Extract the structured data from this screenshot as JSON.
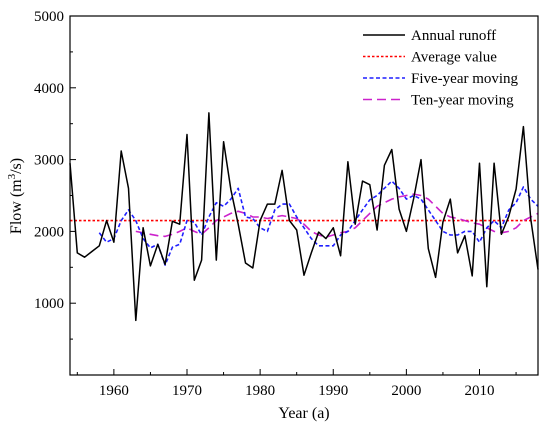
{
  "chart_data": {
    "type": "line",
    "xlabel": "Year (a)",
    "ylabel_main": "Flow (m",
    "ylabel_sup": "3",
    "ylabel_tail": "/s)",
    "xlim": [
      1954,
      2018
    ],
    "ylim": [
      0,
      5000
    ],
    "x_ticks": [
      1960,
      1970,
      1980,
      1990,
      2000,
      2010
    ],
    "y_ticks": [
      1000,
      2000,
      3000,
      4000,
      5000
    ],
    "legend_position": "top-right",
    "average_value": 2150,
    "series": [
      {
        "name": "Annual runoff",
        "color": "#000000",
        "style": "solid",
        "x": [
          1954,
          1955,
          1956,
          1957,
          1958,
          1959,
          1960,
          1961,
          1962,
          1963,
          1964,
          1965,
          1966,
          1967,
          1968,
          1969,
          1970,
          1971,
          1972,
          1973,
          1974,
          1975,
          1976,
          1977,
          1978,
          1979,
          1980,
          1981,
          1982,
          1983,
          1984,
          1985,
          1986,
          1987,
          1988,
          1989,
          1990,
          1991,
          1992,
          1993,
          1994,
          1995,
          1996,
          1997,
          1998,
          1999,
          2000,
          2001,
          2002,
          2003,
          2004,
          2005,
          2006,
          2007,
          2008,
          2009,
          2010,
          2011,
          2012,
          2013,
          2014,
          2015,
          2016,
          2017,
          2018
        ],
        "values": [
          2950,
          1700,
          1640,
          1720,
          1800,
          2150,
          1850,
          3120,
          2600,
          760,
          2050,
          1520,
          1820,
          1540,
          2140,
          2100,
          3350,
          1320,
          1600,
          3650,
          1600,
          3250,
          2580,
          2100,
          1560,
          1490,
          2150,
          2380,
          2380,
          2850,
          2150,
          2020,
          1390,
          1700,
          1990,
          1900,
          2050,
          1660,
          2970,
          2100,
          2700,
          2650,
          2020,
          2920,
          3140,
          2310,
          2000,
          2460,
          3000,
          1760,
          1360,
          2130,
          2450,
          1700,
          1940,
          1380,
          2950,
          1230,
          2950,
          1960,
          2210,
          2590,
          3460,
          2180,
          1470
        ]
      },
      {
        "name": "Average value",
        "color": "#ff0000",
        "style": "dotted",
        "x": [
          1954,
          2018
        ],
        "values": [
          2150,
          2150
        ]
      },
      {
        "name": "Five-year moving",
        "color": "#1f1fff",
        "style": "dashed-short",
        "x": [
          1958,
          1959,
          1960,
          1961,
          1962,
          1963,
          1964,
          1965,
          1966,
          1967,
          1968,
          1969,
          1970,
          1971,
          1972,
          1973,
          1974,
          1975,
          1976,
          1977,
          1978,
          1979,
          1980,
          1981,
          1982,
          1983,
          1984,
          1985,
          1986,
          1987,
          1988,
          1989,
          1990,
          1991,
          1992,
          1993,
          1994,
          1995,
          1996,
          1997,
          1998,
          1999,
          2000,
          2001,
          2002,
          2003,
          2004,
          2005,
          2006,
          2007,
          2008,
          2009,
          2010,
          2011,
          2012,
          2013,
          2014,
          2015,
          2016,
          2017,
          2018
        ],
        "values": [
          1980,
          1850,
          1900,
          2150,
          2300,
          2150,
          1900,
          1770,
          1820,
          1530,
          1780,
          1820,
          2150,
          2130,
          1950,
          2200,
          2400,
          2350,
          2450,
          2600,
          2200,
          2180,
          2050,
          2000,
          2300,
          2380,
          2380,
          2200,
          2050,
          1900,
          1800,
          1800,
          1800,
          1950,
          2000,
          2150,
          2300,
          2440,
          2500,
          2600,
          2700,
          2600,
          2450,
          2500,
          2450,
          2300,
          2150,
          2000,
          1950,
          1950,
          2000,
          2000,
          1850,
          2050,
          2150,
          2050,
          2300,
          2400,
          2620,
          2450,
          2350
        ]
      },
      {
        "name": "Ten-year moving",
        "color": "#cc22cc",
        "style": "dashed-long",
        "x": [
          1963,
          1964,
          1965,
          1966,
          1967,
          1968,
          1969,
          1970,
          1971,
          1972,
          1973,
          1974,
          1975,
          1976,
          1977,
          1978,
          1979,
          1980,
          1981,
          1982,
          1983,
          1984,
          1985,
          1986,
          1987,
          1988,
          1989,
          1990,
          1991,
          1992,
          1993,
          1994,
          1995,
          1996,
          1997,
          1998,
          1999,
          2000,
          2001,
          2002,
          2003,
          2004,
          2005,
          2006,
          2007,
          2008,
          2009,
          2010,
          2011,
          2012,
          2013,
          2014,
          2015,
          2016,
          2017,
          2018
        ],
        "values": [
          2000,
          1980,
          1960,
          1940,
          1930,
          1960,
          2000,
          2050,
          2000,
          1960,
          2050,
          2150,
          2200,
          2250,
          2280,
          2250,
          2200,
          2200,
          2180,
          2200,
          2220,
          2200,
          2180,
          2100,
          2000,
          1950,
          1920,
          1950,
          1980,
          2000,
          2050,
          2150,
          2250,
          2350,
          2400,
          2450,
          2480,
          2500,
          2520,
          2500,
          2450,
          2350,
          2250,
          2200,
          2180,
          2150,
          2120,
          2100,
          2050,
          2000,
          1980,
          2000,
          2050,
          2150,
          2200,
          2250
        ]
      }
    ]
  }
}
